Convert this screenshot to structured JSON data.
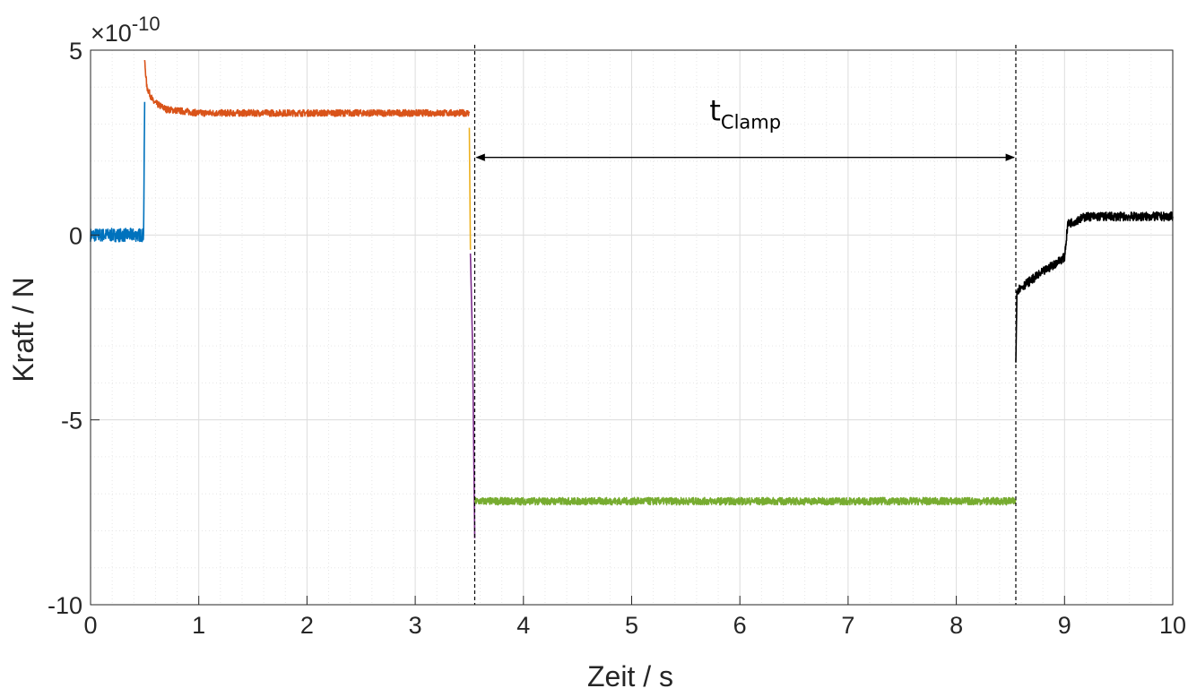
{
  "chart_data": {
    "type": "line",
    "xlabel": "Zeit / s",
    "ylabel": "Kraft / N",
    "y_exponent": {
      "base": "×10",
      "power": "-10"
    },
    "xlim": [
      0,
      10
    ],
    "ylim": [
      -10,
      5
    ],
    "x_ticks": [
      0,
      1,
      2,
      3,
      4,
      5,
      6,
      7,
      8,
      9,
      10
    ],
    "y_ticks": [
      {
        "value": 5,
        "label": "5"
      },
      {
        "value": 0,
        "label": "0"
      },
      {
        "value": -5,
        "label": "-5"
      },
      {
        "value": -10,
        "label": "-10"
      }
    ],
    "grid": true,
    "minor_grid": true,
    "series": [
      {
        "color": "#0072BD",
        "segments": [
          [
            0.0,
            0.0
          ],
          [
            0.49,
            0.0
          ],
          [
            0.5,
            3.6
          ]
        ],
        "noise": 0.18
      },
      {
        "color": "#D95319",
        "segments": [
          [
            0.5,
            4.7
          ],
          [
            0.52,
            4.0
          ],
          [
            0.58,
            3.6
          ],
          [
            0.7,
            3.4
          ],
          [
            1.0,
            3.3
          ],
          [
            3.5,
            3.3
          ]
        ],
        "noise": 0.09
      },
      {
        "color": "#EDB120",
        "segments": [
          [
            3.5,
            2.9
          ],
          [
            3.51,
            -0.4
          ]
        ],
        "noise": 0.0
      },
      {
        "color": "#7E2F8E",
        "segments": [
          [
            3.51,
            -0.5
          ],
          [
            3.53,
            -3.0
          ],
          [
            3.55,
            -8.2
          ]
        ],
        "noise": 0.0
      },
      {
        "color": "#77AC30",
        "segments": [
          [
            3.55,
            -7.2
          ],
          [
            8.55,
            -7.2
          ]
        ],
        "noise": 0.1
      },
      {
        "color": "#000000",
        "segments": [
          [
            8.55,
            -3.5
          ],
          [
            8.56,
            -1.5
          ],
          [
            8.7,
            -1.2
          ],
          [
            9.0,
            -0.6
          ],
          [
            9.03,
            0.3
          ],
          [
            9.2,
            0.5
          ],
          [
            10.0,
            0.5
          ]
        ],
        "noise": 0.12
      }
    ],
    "markers": [
      {
        "x": 3.55,
        "style": "dashed"
      },
      {
        "x": 8.55,
        "style": "dashed"
      }
    ],
    "annotation": {
      "label_main": "t",
      "label_sub": "Clamp",
      "x_from": 3.55,
      "x_to": 8.55,
      "y": 2.1,
      "label_y": 3.1
    }
  }
}
